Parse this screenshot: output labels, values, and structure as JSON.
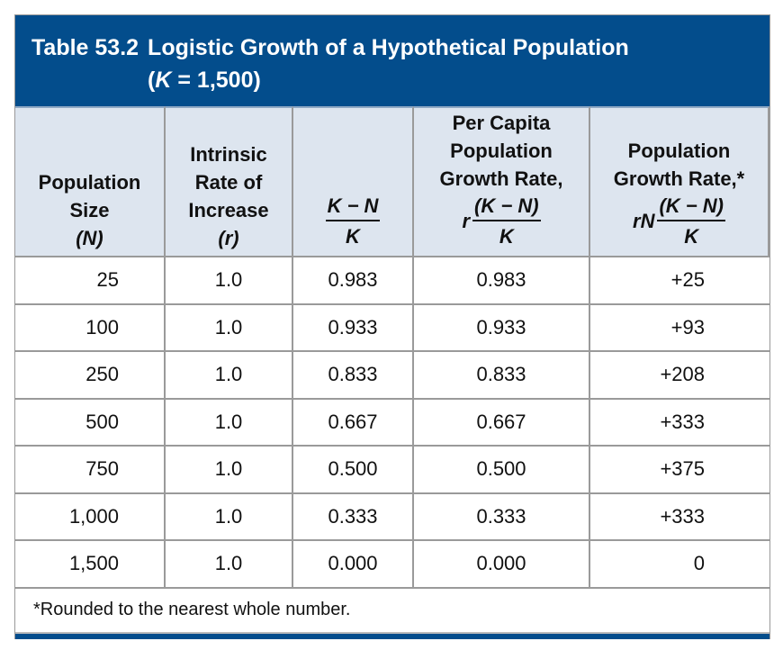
{
  "title": {
    "number": "Table 53.2",
    "text": "Logistic Growth of a Hypothetical Population",
    "subtitle_open": "(",
    "k_symbol": "K",
    "subtitle_rest": " = 1,500)"
  },
  "headers": [
    {
      "lines": [
        "Population",
        "Size",
        "(N)"
      ]
    },
    {
      "lines": [
        "Intrinsic",
        "Rate of",
        "Increase",
        "(r)"
      ]
    },
    {
      "lines": [],
      "frac_num": "K − N",
      "frac_den": "K"
    },
    {
      "lines": [
        "Per Capita",
        "Population",
        "Growth Rate,"
      ],
      "prefix": "r",
      "frac_num": "(K − N)",
      "frac_den": "K"
    },
    {
      "lines": [
        "Population",
        "Growth Rate,*"
      ],
      "prefix": "rN",
      "frac_num": "(K − N)",
      "frac_den": "K"
    }
  ],
  "rows": [
    [
      "25",
      "1.0",
      "0.983",
      "0.983",
      "+25"
    ],
    [
      "100",
      "1.0",
      "0.933",
      "0.933",
      "+93"
    ],
    [
      "250",
      "1.0",
      "0.833",
      "0.833",
      "+208"
    ],
    [
      "500",
      "1.0",
      "0.667",
      "0.667",
      "+333"
    ],
    [
      "750",
      "1.0",
      "0.500",
      "0.500",
      "+375"
    ],
    [
      "1,000",
      "1.0",
      "0.333",
      "0.333",
      "+333"
    ],
    [
      "1,500",
      "1.0",
      "0.000",
      "0.000",
      "0"
    ]
  ],
  "footnote": "*Rounded to the nearest whole number.",
  "colors": {
    "header_blue": "#034d8c",
    "header_row_bg": "#dde5ef"
  }
}
